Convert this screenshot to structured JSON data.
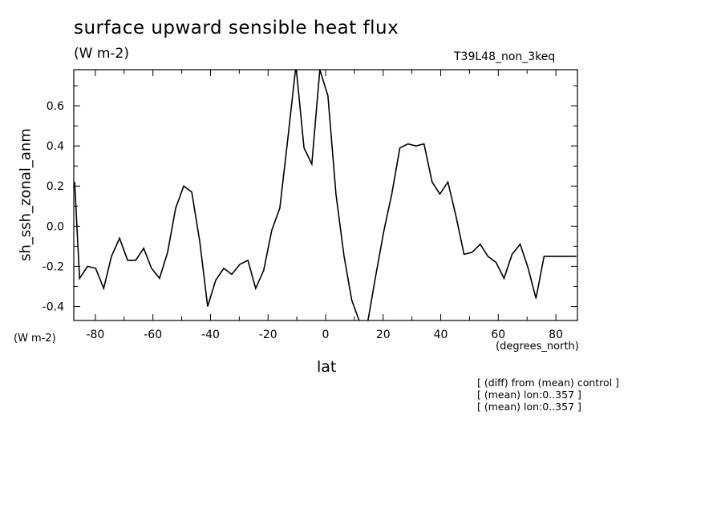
{
  "chart_data": {
    "type": "line",
    "title": "surface upward sensible heat flux",
    "subtitle": "(W m-2)",
    "run_label": "T39L48_non_3keq",
    "xlabel": "lat",
    "x_units": "(degrees_north)",
    "ylabel": "sh_ssh_zonal_anm",
    "y_units": "(W m-2)",
    "xlim": [
      -87.5,
      87.5
    ],
    "ylim": [
      -0.47,
      0.78
    ],
    "xticks": [
      -80,
      -60,
      -40,
      -20,
      0,
      20,
      40,
      60,
      80
    ],
    "xtick_labels": [
      "-80",
      "-60",
      "-40",
      "-20",
      "0",
      "20",
      "40",
      "60",
      "80"
    ],
    "yticks": [
      -0.4,
      -0.2,
      0.0,
      0.2,
      0.4,
      0.6
    ],
    "ytick_labels": [
      "-0.4",
      "-0.2",
      "0.0",
      "0.2",
      "0.4",
      "0.6"
    ],
    "grid": false,
    "x": [
      -87.2,
      -85.5,
      -82.7,
      -79.9,
      -77.1,
      -74.4,
      -71.6,
      -68.8,
      -66.0,
      -63.2,
      -60.5,
      -57.7,
      -54.9,
      -52.1,
      -49.3,
      -46.5,
      -43.7,
      -41.0,
      -38.2,
      -35.4,
      -32.6,
      -29.8,
      -27.0,
      -24.3,
      -21.5,
      -18.7,
      -15.9,
      -13.1,
      -10.3,
      -7.5,
      -4.8,
      -2.0,
      0.8,
      3.6,
      6.4,
      9.1,
      11.9,
      14.7,
      17.5,
      20.3,
      23.0,
      25.8,
      28.6,
      31.4,
      34.2,
      37.0,
      39.7,
      42.5,
      45.3,
      48.1,
      50.9,
      53.7,
      56.4,
      59.2,
      62.0,
      64.8,
      67.6,
      70.4,
      73.1,
      75.9,
      78.7,
      81.5,
      84.3,
      87.1
    ],
    "series": [
      {
        "color": "#000000",
        "values": [
          0.22,
          -0.26,
          -0.2,
          -0.21,
          -0.31,
          -0.15,
          -0.06,
          -0.17,
          -0.17,
          -0.11,
          -0.21,
          -0.26,
          -0.13,
          0.09,
          0.2,
          0.17,
          -0.08,
          -0.4,
          -0.27,
          -0.21,
          -0.24,
          -0.19,
          -0.17,
          -0.31,
          -0.22,
          -0.02,
          0.09,
          0.44,
          0.8,
          0.39,
          0.31,
          0.78,
          0.65,
          0.16,
          -0.15,
          -0.37,
          -0.48,
          -0.47,
          -0.24,
          -0.02,
          0.16,
          0.39,
          0.41,
          0.4,
          0.41,
          0.22,
          0.16,
          0.22,
          0.05,
          -0.14,
          -0.13,
          -0.09,
          -0.15,
          -0.18,
          -0.26,
          -0.14,
          -0.09,
          -0.21,
          -0.36,
          -0.15,
          -0.15,
          -0.15,
          -0.15,
          -0.15
        ]
      }
    ]
  },
  "notes": [
    "[ (diff) from (mean) control ]",
    "[ (mean) lon:0..357 ]",
    "[ (mean) lon:0..357 ]"
  ]
}
